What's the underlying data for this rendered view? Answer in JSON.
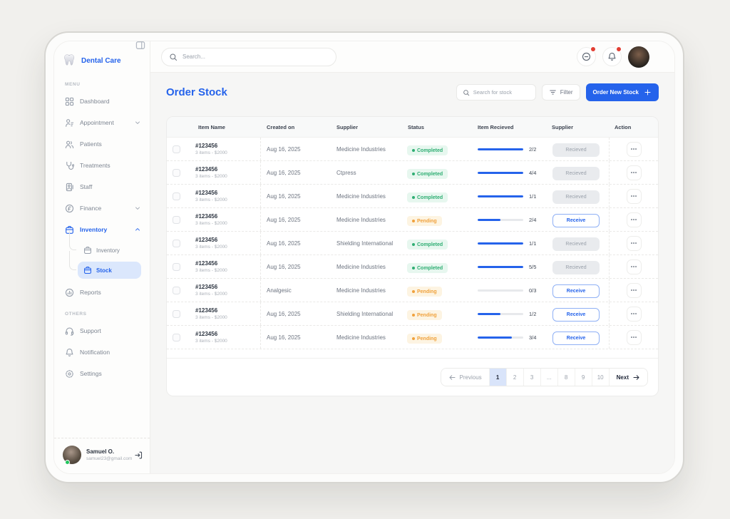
{
  "colors": {
    "accent": "#2563eb",
    "positive": "#2fae73",
    "warning": "#f0a13c",
    "alert": "#e23e32"
  },
  "brand": {
    "name": "Dental Care"
  },
  "topbar": {
    "search_placeholder": "Search..."
  },
  "sidebar": {
    "menu_label": "MENU",
    "others_label": "OTHERS",
    "menu_items": [
      {
        "label": "Dashboard",
        "icon": "dashboard-icon"
      },
      {
        "label": "Appointment",
        "icon": "appointment-icon",
        "chevron": "down"
      },
      {
        "label": "Patients",
        "icon": "patients-icon"
      },
      {
        "label": "Treatments",
        "icon": "treatments-icon"
      },
      {
        "label": "Staff",
        "icon": "staff-icon"
      },
      {
        "label": "Finance",
        "icon": "finance-icon",
        "chevron": "down"
      },
      {
        "label": "Inventory",
        "icon": "inventory-icon",
        "chevron": "up",
        "active": true,
        "children": [
          {
            "label": "Inventory",
            "icon": "box-icon"
          },
          {
            "label": "Stock",
            "icon": "box-icon",
            "active": true
          }
        ]
      },
      {
        "label": "Reports",
        "icon": "reports-icon"
      }
    ],
    "others_items": [
      {
        "label": "Support",
        "icon": "support-icon"
      },
      {
        "label": "Notification",
        "icon": "bell-icon"
      },
      {
        "label": "Settings",
        "icon": "settings-icon"
      }
    ],
    "user": {
      "name": "Samuel O.",
      "email": "samuel23@gmail.com"
    }
  },
  "page": {
    "title": "Order Stock",
    "stock_search_placeholder": "Search for stock",
    "filter_label": "Filter",
    "order_new_stock_label": "Order New Stock"
  },
  "table": {
    "headers": [
      "Item Name",
      "Created on",
      "Supplier",
      "Status",
      "Item Recieved",
      "Supplier",
      "Action"
    ],
    "rows": [
      {
        "item_id": "#123456",
        "item_sub": "3 items - $2000",
        "created_on": "Aug 16, 2025",
        "supplier": "Medicine Industries",
        "status": "Completed",
        "received": "2/2",
        "progress": 100,
        "action_button": "Recieved",
        "button_state": "received"
      },
      {
        "item_id": "#123456",
        "item_sub": "3 items - $2000",
        "created_on": "Aug 16, 2025",
        "supplier": "Ctpress",
        "status": "Completed",
        "received": "4/4",
        "progress": 100,
        "action_button": "Recieved",
        "button_state": "received"
      },
      {
        "item_id": "#123456",
        "item_sub": "3 items - $2000",
        "created_on": "Aug 16, 2025",
        "supplier": "Medicine Industries",
        "status": "Completed",
        "received": "1/1",
        "progress": 100,
        "action_button": "Recieved",
        "button_state": "received"
      },
      {
        "item_id": "#123456",
        "item_sub": "3 items - $2000",
        "created_on": "Aug 16, 2025",
        "supplier": "Medicine Industries",
        "status": "Pending",
        "received": "2/4",
        "progress": 50,
        "action_button": "Receive",
        "button_state": "receive"
      },
      {
        "item_id": "#123456",
        "item_sub": "3 items - $2000",
        "created_on": "Aug 16, 2025",
        "supplier": "Shielding International",
        "status": "Completed",
        "received": "1/1",
        "progress": 100,
        "action_button": "Recieved",
        "button_state": "received"
      },
      {
        "item_id": "#123456",
        "item_sub": "3 items - $2000",
        "created_on": "Aug 16, 2025",
        "supplier": "Medicine Industries",
        "status": "Completed",
        "received": "5/5",
        "progress": 100,
        "action_button": "Recieved",
        "button_state": "received"
      },
      {
        "item_id": "#123456",
        "item_sub": "3 items - $2000",
        "created_on": "Analgesic",
        "supplier": "Medicine Industries",
        "status": "Pending",
        "received": "0/3",
        "progress": 0,
        "action_button": "Receive",
        "button_state": "receive"
      },
      {
        "item_id": "#123456",
        "item_sub": "3 items - $2000",
        "created_on": "Aug 16, 2025",
        "supplier": "Shielding International",
        "status": "Pending",
        "received": "1/2",
        "progress": 50,
        "action_button": "Receive",
        "button_state": "receive"
      },
      {
        "item_id": "#123456",
        "item_sub": "3 items - $2000",
        "created_on": "Aug 16, 2025",
        "supplier": "Medicine Industries",
        "status": "Pending",
        "received": "3/4",
        "progress": 75,
        "action_button": "Receive",
        "button_state": "receive"
      }
    ]
  },
  "pagination": {
    "previous_label": "Previous",
    "next_label": "Next",
    "pages": [
      "1",
      "2",
      "3",
      "...",
      "8",
      "9",
      "10"
    ],
    "active_page": "1"
  }
}
